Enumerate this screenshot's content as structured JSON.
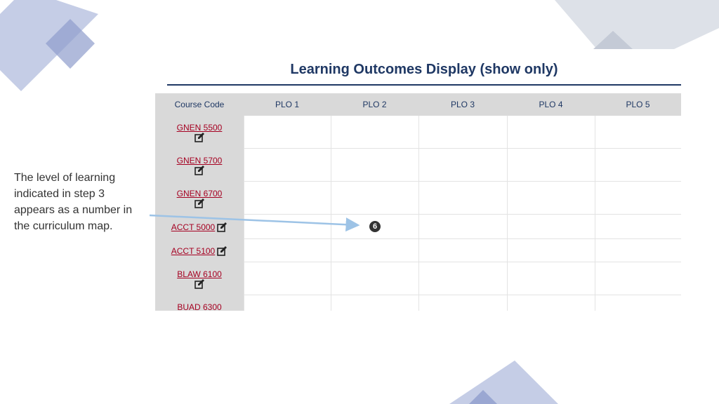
{
  "caption": [
    "The level of learning",
    "indicated in step 3",
    "appears as a number in",
    "the curriculum map."
  ],
  "screenshot": {
    "title": "Learning Outcomes Display (show only)",
    "table": {
      "columns": [
        "Course Code",
        "PLO 1",
        "PLO 2",
        "PLO 3",
        "PLO 4",
        "PLO 5"
      ],
      "rows": [
        {
          "course": "GNEN 5500"
        },
        {
          "course": "GNEN 5700"
        },
        {
          "course": "GNEN 6700"
        },
        {
          "course": "ACCT 5000",
          "levels": {
            "PLO 2": 6
          }
        },
        {
          "course": "ACCT 5100"
        },
        {
          "course": "BLAW 6100"
        },
        {
          "course": "BUAD 6300"
        }
      ]
    }
  }
}
